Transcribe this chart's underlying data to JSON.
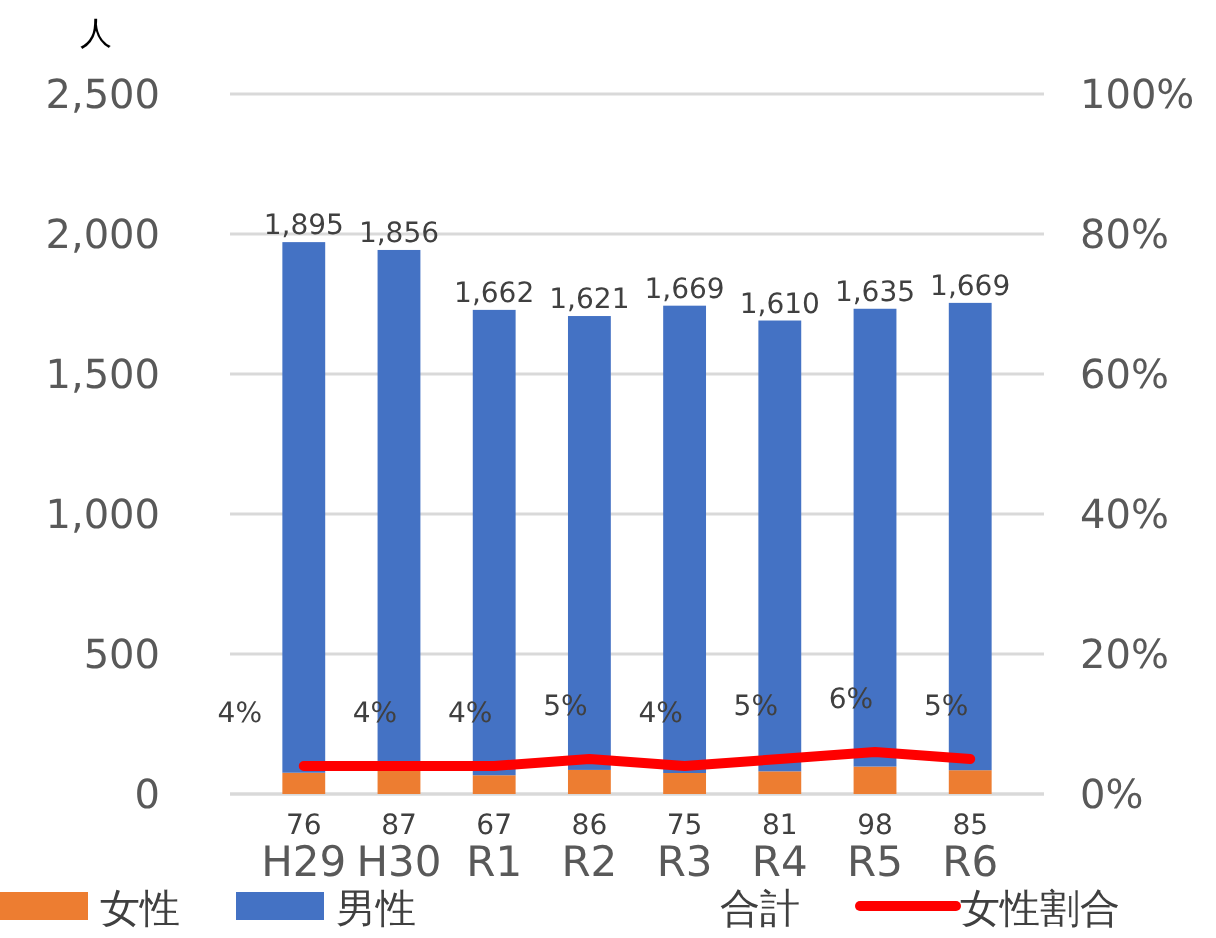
{
  "chart_data": {
    "type": "bar",
    "stacked": true,
    "ylabel": "人",
    "categories": [
      "H29",
      "H30",
      "R1",
      "R2",
      "R3",
      "R4",
      "R5",
      "R6"
    ],
    "series": [
      {
        "name": "女性",
        "color": "#ed7d31",
        "values": [
          76,
          87,
          67,
          86,
          75,
          81,
          98,
          85
        ],
        "value_labels": [
          "76",
          "87",
          "67",
          "86",
          "75",
          "81",
          "98",
          "85"
        ]
      },
      {
        "name": "男性",
        "color": "#4472c4",
        "values": [
          1895,
          1856,
          1662,
          1621,
          1669,
          1610,
          1635,
          1669
        ],
        "value_labels": [
          "1,895",
          "1,856",
          "1,662",
          "1,621",
          "1,669",
          "1,610",
          "1,635",
          "1,669"
        ]
      },
      {
        "name": "女性割合",
        "type": "line",
        "axis": "y2",
        "color": "#ff0000",
        "values": [
          4,
          4,
          4,
          5,
          4,
          5,
          6,
          5
        ],
        "value_labels": [
          "4%",
          "4%",
          "4%",
          "5%",
          "4%",
          "5%",
          "6%",
          "5%"
        ]
      }
    ],
    "ylim": [
      0,
      2500
    ],
    "yticks": [
      0,
      {
        "value": 500,
        "label": "500"
      },
      {
        "value": 1000,
        "label": "1,000"
      },
      {
        "value": 1500,
        "label": "1,500"
      },
      {
        "value": 2000,
        "label": "2,000"
      },
      {
        "value": 2500,
        "label": "2,500"
      }
    ],
    "y2lim": [
      0,
      100
    ],
    "y2ticks": [
      {
        "value": 0,
        "label": "0%"
      },
      {
        "value": 20,
        "label": "20%"
      },
      {
        "value": 40,
        "label": "40%"
      },
      {
        "value": 60,
        "label": "60%"
      },
      {
        "value": 80,
        "label": "80%"
      },
      {
        "value": 100,
        "label": "100%"
      }
    ],
    "grid": "y",
    "legend": "bottom",
    "line_style": "solid",
    "marker": "none",
    "annotations": [
      "合計"
    ]
  }
}
